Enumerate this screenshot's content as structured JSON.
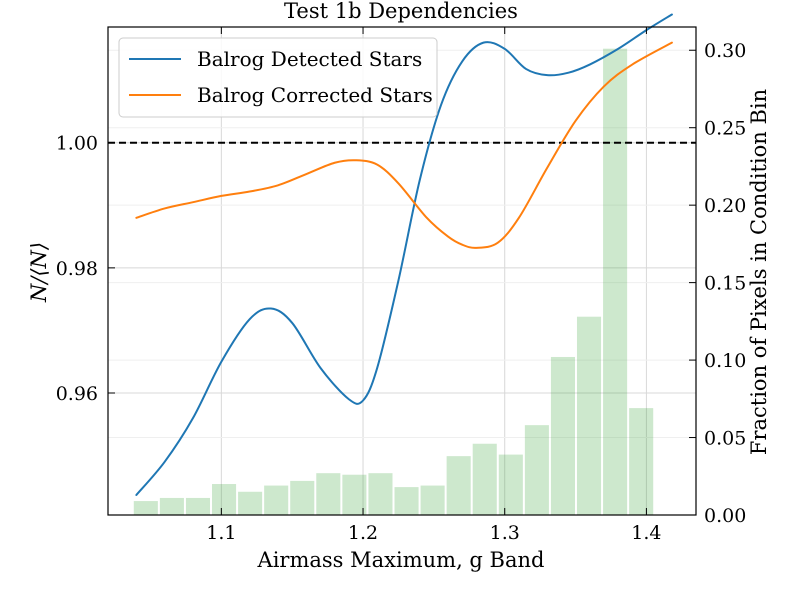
{
  "chart_data": {
    "type": "line",
    "title": "Test 1b Dependencies",
    "xlabel": "Airmass Maximum, g Band",
    "ylabel": "N/⟨N⟩",
    "y2label": "Fraction of Pixels in Condition Bin",
    "xlim": [
      1.02,
      1.435
    ],
    "ylim": [
      0.9405,
      1.0185
    ],
    "y2lim": [
      0.0,
      0.315
    ],
    "x_ticks": [
      1.1,
      1.2,
      1.3,
      1.4
    ],
    "x_tick_labels": [
      "1.1",
      "1.2",
      "1.3",
      "1.4"
    ],
    "y_ticks": [
      0.96,
      0.98,
      1.0
    ],
    "y_tick_labels": [
      "0.96",
      "0.98",
      "1.00"
    ],
    "y2_ticks": [
      0.0,
      0.05,
      0.1,
      0.15,
      0.2,
      0.25,
      0.3
    ],
    "y2_tick_labels": [
      "0.00",
      "0.05",
      "0.10",
      "0.15",
      "0.20",
      "0.25",
      "0.30"
    ],
    "grid": true,
    "reference_line": {
      "y": 1.0,
      "style": "dashed",
      "color": "#000000"
    },
    "legend_position": "top-left",
    "series": [
      {
        "name": "Balrog Detected Stars",
        "color": "#1f77b4",
        "x": [
          1.04,
          1.06,
          1.08,
          1.1,
          1.12,
          1.135,
          1.15,
          1.17,
          1.19,
          1.2,
          1.21,
          1.225,
          1.24,
          1.255,
          1.27,
          1.285,
          1.3,
          1.315,
          1.33,
          1.345,
          1.36,
          1.38,
          1.4,
          1.418
        ],
        "y": [
          0.9437,
          0.949,
          0.956,
          0.965,
          0.9718,
          0.9735,
          0.9712,
          0.964,
          0.959,
          0.9588,
          0.964,
          0.978,
          0.994,
          1.006,
          1.013,
          1.016,
          1.015,
          1.0118,
          1.0108,
          1.0112,
          1.0125,
          1.015,
          1.018,
          1.0205
        ]
      },
      {
        "name": "Balrog Corrected Stars",
        "color": "#ff7f0e",
        "x": [
          1.04,
          1.06,
          1.08,
          1.1,
          1.12,
          1.14,
          1.16,
          1.18,
          1.195,
          1.21,
          1.225,
          1.245,
          1.26,
          1.27,
          1.28,
          1.295,
          1.31,
          1.33,
          1.35,
          1.37,
          1.39,
          1.418
        ],
        "y": [
          0.988,
          0.9895,
          0.9905,
          0.9915,
          0.9922,
          0.9932,
          0.995,
          0.9968,
          0.9972,
          0.9965,
          0.9935,
          0.988,
          0.985,
          0.9837,
          0.9832,
          0.984,
          0.988,
          0.996,
          1.0035,
          1.009,
          1.0125,
          1.016
        ]
      }
    ],
    "histogram": {
      "axis": "right",
      "color": "#2ca02c",
      "opacity": 0.24,
      "bin_edges": [
        1.02,
        1.0375,
        1.0559,
        1.0743,
        1.0927,
        1.1111,
        1.1295,
        1.1479,
        1.1663,
        1.1847,
        1.2031,
        1.2215,
        1.2399,
        1.2583,
        1.2767,
        1.2951,
        1.3135,
        1.3319,
        1.3503,
        1.3687,
        1.3871,
        1.4055,
        1.4239
      ],
      "values": [
        0.0,
        0.009,
        0.011,
        0.011,
        0.02,
        0.015,
        0.019,
        0.022,
        0.027,
        0.026,
        0.027,
        0.018,
        0.019,
        0.038,
        0.046,
        0.039,
        0.058,
        0.102,
        0.128,
        0.301,
        0.069,
        0.0
      ],
      "draw_from_bin": 1,
      "draw_to_bin": 20
    }
  }
}
